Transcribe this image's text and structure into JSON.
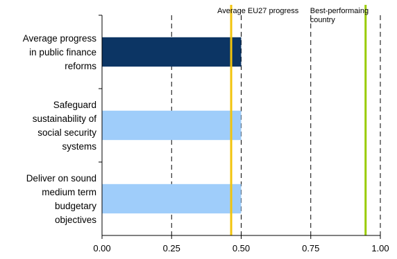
{
  "chart_data": {
    "type": "bar",
    "orientation": "horizontal",
    "title": "",
    "xlabel": "",
    "ylabel": "",
    "xlim": [
      0,
      1
    ],
    "xticks": [
      "0.00",
      "0.25",
      "0.50",
      "0.75",
      "1.00"
    ],
    "grid": "dashed vertical",
    "categories": [
      {
        "lines": [
          "Average progress",
          "in public finance",
          "reforms"
        ],
        "value": 0.5,
        "color": "#0c3564"
      },
      {
        "lines": [
          "Safeguard",
          "sustainability of",
          "social security",
          "systems"
        ],
        "value": 0.5,
        "color": "#9fcdfa"
      },
      {
        "lines": [
          "Deliver on sound",
          "medium term",
          "budgetary",
          "objectives"
        ],
        "value": 0.5,
        "color": "#9fcdfa"
      }
    ],
    "reference_lines": [
      {
        "label": "Average EU27 progress",
        "value": 0.464,
        "color": "#f2c40c"
      },
      {
        "label": "Best-performaing country",
        "lines": [
          "Best-performaing",
          "country"
        ],
        "value": 0.947,
        "color": "#99cc00"
      }
    ]
  }
}
